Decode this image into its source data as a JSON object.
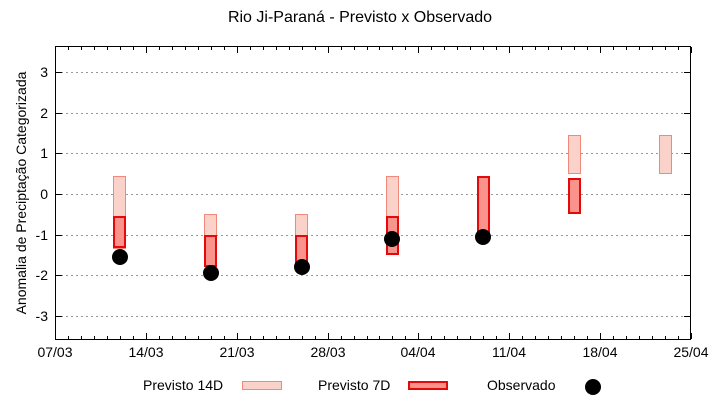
{
  "title": "Rio Ji-Paraná - Previsto x Observado",
  "chart_data": {
    "type": "bar",
    "subtype": "range-bars-with-scatter",
    "title": "Rio Ji-Paraná - Previsto x Observado",
    "ylabel": "Anomalia de Preciptação Categorizada",
    "xlabel": "",
    "ylim": [
      -3.6,
      3.65
    ],
    "yticks": [
      3,
      2,
      1,
      0,
      -1,
      -2,
      -3
    ],
    "x_axis": {
      "tick_labels": [
        "07/03",
        "14/03",
        "21/03",
        "28/03",
        "04/04",
        "11/04",
        "18/04",
        "25/04"
      ],
      "tick_days": [
        0,
        7,
        14,
        21,
        28,
        35,
        42,
        49
      ],
      "minor_tick_interval_days": 1,
      "range_days": [
        0,
        49
      ]
    },
    "grid": {
      "horizontal": "dotted",
      "vertical": "none",
      "color": "#999999"
    },
    "legend": {
      "position": "bottom"
    },
    "colors": {
      "previsto14d_fill": "#FAD2C9",
      "previsto14d_border": "#F0897A",
      "previsto7d_fill": "#FA938C",
      "previsto7d_border": "#E60909",
      "observado": "#000000"
    },
    "series": [
      {
        "name": "Previsto 14D",
        "type": "range-bar",
        "points": [
          {
            "date": "12/03",
            "day": 5,
            "low": -1.35,
            "high": 0.45
          },
          {
            "date": "19/03",
            "day": 12,
            "low": -1.8,
            "high": -0.5
          },
          {
            "date": "26/03",
            "day": 19,
            "low": -1.85,
            "high": -0.5
          },
          {
            "date": "02/04",
            "day": 26,
            "low": -1.5,
            "high": 0.45
          },
          {
            "date": "16/04",
            "day": 40,
            "low": 0.5,
            "high": 1.45
          },
          {
            "date": "23/04",
            "day": 47,
            "low": 0.5,
            "high": 1.45
          }
        ]
      },
      {
        "name": "Previsto 7D",
        "type": "range-bar",
        "points": [
          {
            "date": "12/03",
            "day": 5,
            "low": -1.35,
            "high": -0.55
          },
          {
            "date": "19/03",
            "day": 12,
            "low": -1.8,
            "high": -1.0
          },
          {
            "date": "26/03",
            "day": 19,
            "low": -1.85,
            "high": -1.0
          },
          {
            "date": "02/04",
            "day": 26,
            "low": -1.5,
            "high": -0.55
          },
          {
            "date": "09/04",
            "day": 33,
            "low": -1.0,
            "high": 0.45
          },
          {
            "date": "16/04",
            "day": 40,
            "low": -0.5,
            "high": 0.4
          }
        ]
      },
      {
        "name": "Observado",
        "type": "scatter",
        "points": [
          {
            "date": "12/03",
            "day": 5,
            "value": -1.55
          },
          {
            "date": "19/03",
            "day": 12,
            "value": -1.95
          },
          {
            "date": "26/03",
            "day": 19,
            "value": -1.8
          },
          {
            "date": "02/04",
            "day": 26,
            "value": -1.1
          },
          {
            "date": "09/04",
            "day": 33,
            "value": -1.05
          }
        ]
      }
    ]
  }
}
